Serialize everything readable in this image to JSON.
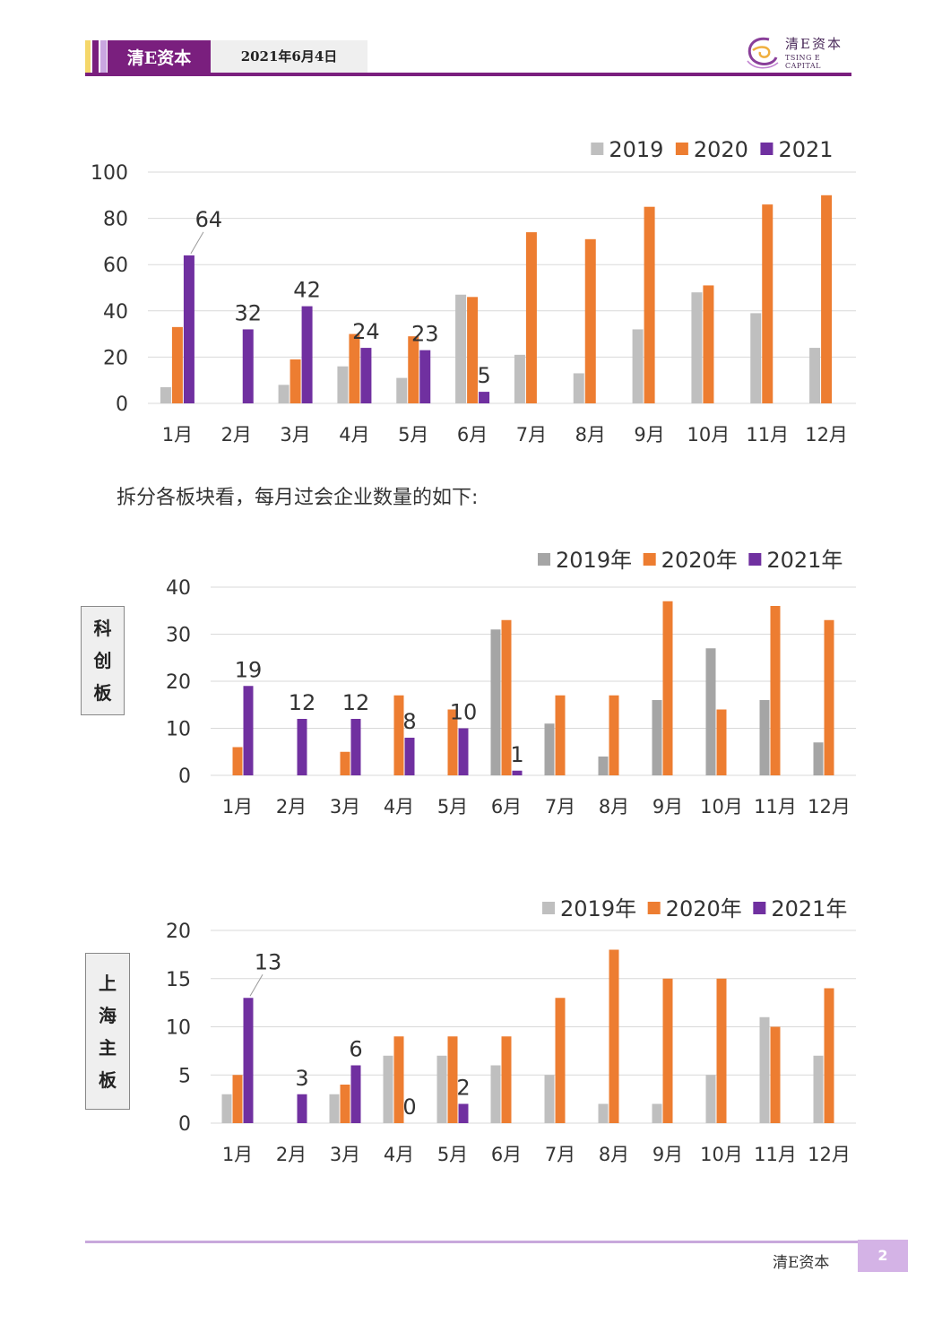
{
  "header": {
    "brand": "清E资本",
    "date": "2021年6月4日",
    "logo_cn": "清E资本",
    "logo_en": "TSING E CAPITAL",
    "colors": {
      "purple": "#7a1f7e",
      "yellow": "#f5d76a",
      "lilac": "#c9a6e0"
    }
  },
  "intro": "拆分各板块看，每月过会企业数量的如下:",
  "tags": {
    "star": [
      "科",
      "创",
      "板"
    ],
    "shanghai": [
      "上",
      "海",
      "主",
      "板"
    ]
  },
  "footer": {
    "brand": "清E资本",
    "page": "2"
  },
  "chart_data": [
    {
      "type": "bar",
      "categories": [
        "1月",
        "2月",
        "3月",
        "4月",
        "5月",
        "6月",
        "7月",
        "8月",
        "9月",
        "10月",
        "11月",
        "12月"
      ],
      "ylim": [
        0,
        100
      ],
      "yticks": [
        0,
        20,
        40,
        60,
        80,
        100
      ],
      "grid": true,
      "legend": "top-right",
      "series": [
        {
          "name": "2019",
          "color": "#bfbfbf",
          "values": [
            7,
            0,
            8,
            16,
            11,
            47,
            21,
            13,
            32,
            48,
            39,
            24
          ],
          "labels": []
        },
        {
          "name": "2020",
          "color": "#ed7d31",
          "values": [
            33,
            0,
            19,
            30,
            29,
            46,
            74,
            71,
            85,
            51,
            86,
            90
          ],
          "labels": []
        },
        {
          "name": "2021",
          "color": "#7030a0",
          "values": [
            64,
            32,
            42,
            24,
            23,
            5,
            null,
            null,
            null,
            null,
            null,
            null
          ],
          "labels": [
            "64",
            "32",
            "42",
            "24",
            "23",
            "5"
          ]
        }
      ]
    },
    {
      "type": "bar",
      "categories": [
        "1月",
        "2月",
        "3月",
        "4月",
        "5月",
        "6月",
        "7月",
        "8月",
        "9月",
        "10月",
        "11月",
        "12月"
      ],
      "ylim": [
        0,
        40
      ],
      "yticks": [
        0,
        10,
        20,
        30,
        40
      ],
      "grid": true,
      "legend": "top-right",
      "series": [
        {
          "name": "2019年",
          "color": "#a5a5a5",
          "values": [
            0,
            0,
            0,
            0,
            0,
            31,
            11,
            4,
            16,
            27,
            16,
            7
          ],
          "labels": []
        },
        {
          "name": "2020年",
          "color": "#ed7d31",
          "values": [
            6,
            0,
            5,
            17,
            14,
            33,
            17,
            17,
            37,
            14,
            36,
            33
          ],
          "labels": []
        },
        {
          "name": "2021年",
          "color": "#7030a0",
          "values": [
            19,
            12,
            12,
            8,
            10,
            1,
            null,
            null,
            null,
            null,
            null,
            null
          ],
          "labels": [
            "19",
            "12",
            "12",
            "8",
            "10",
            "1"
          ]
        }
      ]
    },
    {
      "type": "bar",
      "categories": [
        "1月",
        "2月",
        "3月",
        "4月",
        "5月",
        "6月",
        "7月",
        "8月",
        "9月",
        "10月",
        "11月",
        "12月"
      ],
      "ylim": [
        0,
        20
      ],
      "yticks": [
        0,
        5,
        10,
        15,
        20
      ],
      "grid": true,
      "legend": "top-right",
      "series": [
        {
          "name": "2019年",
          "color": "#bfbfbf",
          "values": [
            3,
            0,
            3,
            7,
            7,
            6,
            5,
            2,
            2,
            5,
            11,
            7
          ],
          "labels": []
        },
        {
          "name": "2020年",
          "color": "#ed7d31",
          "values": [
            5,
            0,
            4,
            9,
            9,
            9,
            13,
            18,
            15,
            15,
            10,
            14
          ],
          "labels": []
        },
        {
          "name": "2021年",
          "color": "#7030a0",
          "values": [
            13,
            3,
            6,
            0,
            2,
            null,
            null,
            null,
            null,
            null,
            null,
            null
          ],
          "labels": [
            "13",
            "3",
            "6",
            "0",
            "2"
          ]
        }
      ]
    }
  ]
}
